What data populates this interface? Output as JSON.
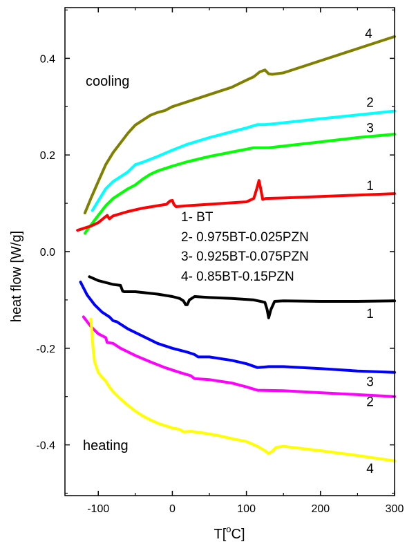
{
  "chart_data": {
    "type": "line",
    "title": "",
    "xlabel_main": "T[",
    "xlabel_sup": "o",
    "xlabel_end": "C]",
    "ylabel": "heat flow [W/g]",
    "xlim": [
      -145,
      300
    ],
    "ylim": [
      -0.505,
      0.505
    ],
    "xticks": [
      -100,
      0,
      100,
      200,
      300
    ],
    "xtick_labels": [
      "-100",
      "0",
      "100",
      "200",
      "300"
    ],
    "yticks": [
      -0.4,
      -0.2,
      0.0,
      0.2,
      0.4
    ],
    "ytick_labels": [
      "-0.4",
      "-0.2",
      "0.0",
      "0.2",
      "0.4"
    ],
    "legend_lines": [
      "1- BT",
      "2- 0.975BT-0.025PZN",
      "3- 0.925BT-0.075PZN",
      "4- 0.85BT-0.15PZN"
    ],
    "section_labels": {
      "cooling": "cooling",
      "heating": "heating"
    },
    "colors": {
      "cool4": "#808000",
      "cool2": "#00ffff",
      "cool3": "#00ff00",
      "cool1": "#ff0000",
      "heat1": "#000000",
      "heat3": "#0000ff",
      "heat2": "#ff00ff",
      "heat4": "#ffff00"
    },
    "series": [
      {
        "id": "cool4",
        "label": "4",
        "label_at": [
          -0.85,
          0.45
        ],
        "label_x": 260,
        "points": [
          [
            -118,
            0.08
          ],
          [
            -110,
            0.11
          ],
          [
            -100,
            0.145
          ],
          [
            -90,
            0.18
          ],
          [
            -80,
            0.205
          ],
          [
            -70,
            0.225
          ],
          [
            -60,
            0.245
          ],
          [
            -50,
            0.262
          ],
          [
            -40,
            0.272
          ],
          [
            -30,
            0.282
          ],
          [
            -20,
            0.288
          ],
          [
            -10,
            0.292
          ],
          [
            0,
            0.3
          ],
          [
            20,
            0.31
          ],
          [
            40,
            0.32
          ],
          [
            60,
            0.33
          ],
          [
            80,
            0.34
          ],
          [
            100,
            0.355
          ],
          [
            110,
            0.362
          ],
          [
            118,
            0.372
          ],
          [
            125,
            0.376
          ],
          [
            130,
            0.368
          ],
          [
            135,
            0.367
          ],
          [
            150,
            0.37
          ],
          [
            200,
            0.395
          ],
          [
            250,
            0.42
          ],
          [
            300,
            0.445
          ]
        ]
      },
      {
        "id": "cool2",
        "label": "2",
        "label_x": 262,
        "label_y": 0.31,
        "points": [
          [
            -108,
            0.085
          ],
          [
            -100,
            0.105
          ],
          [
            -90,
            0.13
          ],
          [
            -80,
            0.145
          ],
          [
            -70,
            0.155
          ],
          [
            -60,
            0.165
          ],
          [
            -50,
            0.18
          ],
          [
            -40,
            0.185
          ],
          [
            -20,
            0.197
          ],
          [
            0,
            0.21
          ],
          [
            20,
            0.222
          ],
          [
            50,
            0.236
          ],
          [
            80,
            0.248
          ],
          [
            100,
            0.256
          ],
          [
            115,
            0.263
          ],
          [
            125,
            0.263
          ],
          [
            140,
            0.265
          ],
          [
            200,
            0.275
          ],
          [
            250,
            0.283
          ],
          [
            300,
            0.291
          ]
        ]
      },
      {
        "id": "cool3",
        "label": "3",
        "label_x": 262,
        "label_y": 0.257,
        "points": [
          [
            -118,
            0.038
          ],
          [
            -110,
            0.055
          ],
          [
            -100,
            0.075
          ],
          [
            -90,
            0.095
          ],
          [
            -80,
            0.11
          ],
          [
            -70,
            0.12
          ],
          [
            -60,
            0.13
          ],
          [
            -50,
            0.138
          ],
          [
            -40,
            0.15
          ],
          [
            -30,
            0.16
          ],
          [
            -20,
            0.167
          ],
          [
            0,
            0.177
          ],
          [
            20,
            0.186
          ],
          [
            50,
            0.197
          ],
          [
            80,
            0.206
          ],
          [
            100,
            0.212
          ],
          [
            110,
            0.215
          ],
          [
            130,
            0.215
          ],
          [
            200,
            0.227
          ],
          [
            250,
            0.236
          ],
          [
            300,
            0.243
          ]
        ]
      },
      {
        "id": "cool1",
        "label": "1",
        "label_x": 262,
        "label_y": 0.137,
        "points": [
          [
            -128,
            0.044
          ],
          [
            -110,
            0.053
          ],
          [
            -100,
            0.06
          ],
          [
            -92,
            0.07
          ],
          [
            -88,
            0.075
          ],
          [
            -85,
            0.068
          ],
          [
            -80,
            0.074
          ],
          [
            -60,
            0.083
          ],
          [
            -40,
            0.09
          ],
          [
            -20,
            0.095
          ],
          [
            -8,
            0.098
          ],
          [
            -3,
            0.105
          ],
          [
            0,
            0.106
          ],
          [
            2,
            0.098
          ],
          [
            5,
            0.093
          ],
          [
            20,
            0.095
          ],
          [
            50,
            0.098
          ],
          [
            80,
            0.101
          ],
          [
            100,
            0.103
          ],
          [
            110,
            0.11
          ],
          [
            114,
            0.13
          ],
          [
            117,
            0.147
          ],
          [
            119,
            0.132
          ],
          [
            122,
            0.108
          ],
          [
            126,
            0.11
          ],
          [
            150,
            0.111
          ],
          [
            200,
            0.114
          ],
          [
            250,
            0.117
          ],
          [
            300,
            0.12
          ]
        ]
      },
      {
        "id": "heat1",
        "label": "1",
        "label_x": 262,
        "label_y": -0.127,
        "points": [
          [
            -112,
            -0.052
          ],
          [
            -100,
            -0.06
          ],
          [
            -80,
            -0.068
          ],
          [
            -70,
            -0.07
          ],
          [
            -67,
            -0.082
          ],
          [
            -65,
            -0.083
          ],
          [
            -50,
            -0.083
          ],
          [
            -20,
            -0.088
          ],
          [
            0,
            -0.093
          ],
          [
            10,
            -0.097
          ],
          [
            15,
            -0.102
          ],
          [
            18,
            -0.11
          ],
          [
            20,
            -0.11
          ],
          [
            23,
            -0.1
          ],
          [
            30,
            -0.093
          ],
          [
            50,
            -0.095
          ],
          [
            80,
            -0.097
          ],
          [
            110,
            -0.1
          ],
          [
            125,
            -0.105
          ],
          [
            128,
            -0.12
          ],
          [
            130,
            -0.137
          ],
          [
            133,
            -0.12
          ],
          [
            138,
            -0.103
          ],
          [
            150,
            -0.102
          ],
          [
            200,
            -0.103
          ],
          [
            250,
            -0.103
          ],
          [
            300,
            -0.102
          ]
        ]
      },
      {
        "id": "heat3",
        "label": "3",
        "label_x": 262,
        "label_y": -0.268,
        "points": [
          [
            -124,
            -0.063
          ],
          [
            -115,
            -0.09
          ],
          [
            -105,
            -0.11
          ],
          [
            -95,
            -0.125
          ],
          [
            -85,
            -0.135
          ],
          [
            -80,
            -0.143
          ],
          [
            -75,
            -0.145
          ],
          [
            -70,
            -0.15
          ],
          [
            -60,
            -0.16
          ],
          [
            -40,
            -0.175
          ],
          [
            -20,
            -0.19
          ],
          [
            0,
            -0.2
          ],
          [
            20,
            -0.208
          ],
          [
            30,
            -0.213
          ],
          [
            35,
            -0.218
          ],
          [
            50,
            -0.218
          ],
          [
            80,
            -0.225
          ],
          [
            100,
            -0.232
          ],
          [
            115,
            -0.24
          ],
          [
            130,
            -0.238
          ],
          [
            150,
            -0.238
          ],
          [
            200,
            -0.242
          ],
          [
            250,
            -0.247
          ],
          [
            300,
            -0.25
          ]
        ]
      },
      {
        "id": "heat2",
        "label": "2",
        "label_x": 262,
        "label_y": -0.31,
        "points": [
          [
            -120,
            -0.135
          ],
          [
            -110,
            -0.155
          ],
          [
            -100,
            -0.17
          ],
          [
            -90,
            -0.178
          ],
          [
            -88,
            -0.188
          ],
          [
            -80,
            -0.19
          ],
          [
            -70,
            -0.2
          ],
          [
            -50,
            -0.215
          ],
          [
            -30,
            -0.228
          ],
          [
            -10,
            -0.24
          ],
          [
            10,
            -0.25
          ],
          [
            25,
            -0.257
          ],
          [
            30,
            -0.263
          ],
          [
            50,
            -0.265
          ],
          [
            80,
            -0.272
          ],
          [
            100,
            -0.28
          ],
          [
            115,
            -0.287
          ],
          [
            150,
            -0.288
          ],
          [
            200,
            -0.292
          ],
          [
            250,
            -0.296
          ],
          [
            300,
            -0.3
          ]
        ]
      },
      {
        "id": "heat4",
        "label": "4",
        "label_x": 262,
        "label_y": -0.448,
        "points": [
          [
            -110,
            -0.14
          ],
          [
            -107,
            -0.2
          ],
          [
            -105,
            -0.228
          ],
          [
            -100,
            -0.25
          ],
          [
            -95,
            -0.26
          ],
          [
            -90,
            -0.268
          ],
          [
            -85,
            -0.28
          ],
          [
            -80,
            -0.29
          ],
          [
            -70,
            -0.305
          ],
          [
            -60,
            -0.318
          ],
          [
            -50,
            -0.33
          ],
          [
            -40,
            -0.34
          ],
          [
            -30,
            -0.348
          ],
          [
            -20,
            -0.355
          ],
          [
            -10,
            -0.36
          ],
          [
            0,
            -0.365
          ],
          [
            10,
            -0.368
          ],
          [
            15,
            -0.373
          ],
          [
            25,
            -0.372
          ],
          [
            40,
            -0.375
          ],
          [
            60,
            -0.38
          ],
          [
            80,
            -0.387
          ],
          [
            100,
            -0.393
          ],
          [
            115,
            -0.403
          ],
          [
            125,
            -0.412
          ],
          [
            130,
            -0.418
          ],
          [
            135,
            -0.413
          ],
          [
            140,
            -0.405
          ],
          [
            150,
            -0.403
          ],
          [
            200,
            -0.412
          ],
          [
            250,
            -0.422
          ],
          [
            300,
            -0.433
          ]
        ]
      }
    ]
  }
}
